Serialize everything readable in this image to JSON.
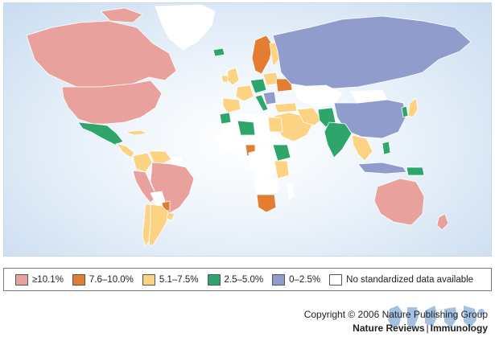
{
  "colors": {
    "c10": "#e8a19c",
    "c76": "#e27d32",
    "c51": "#fcd283",
    "c25": "#2ea56a",
    "c0": "#8f9ccc",
    "nodata": "#ffffff",
    "land_border": "#ffffff",
    "ocean_edge": "#c9dcf0"
  },
  "legend": {
    "items": [
      {
        "label": "≥10.1%",
        "color": "#e8a19c"
      },
      {
        "label": "7.6–10.0%",
        "color": "#e27d32"
      },
      {
        "label": "5.1–7.5%",
        "color": "#fcd283"
      },
      {
        "label": "2.5–5.0%",
        "color": "#2ea56a"
      },
      {
        "label": "0–2.5%",
        "color": "#8f9ccc"
      },
      {
        "label": "No standardized data available",
        "color": "#ffffff"
      }
    ]
  },
  "footer": {
    "copyright": "Copyright © 2006 Nature Publishing Group",
    "journal": "Nature Reviews",
    "journal_separator": "|",
    "journal_section": "Immunology"
  }
}
